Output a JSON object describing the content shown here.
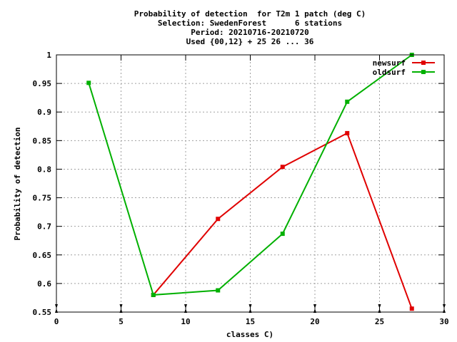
{
  "chart_data": {
    "type": "line",
    "title_lines": [
      "Probability of detection  for T2m 1 patch (deg C)",
      "Selection: SwedenForest      6 stations",
      "Period: 20210716-20210720",
      "Used {00,12} + 25 26 ... 36"
    ],
    "xlabel": "classes C)",
    "ylabel": "Probability of detection",
    "xlim": [
      0,
      30
    ],
    "ylim": [
      0.55,
      1.0
    ],
    "x_ticks": [
      0,
      5,
      10,
      15,
      20,
      25,
      30
    ],
    "x_tick_labels": [
      "0",
      "5",
      "10",
      "15",
      "20",
      "25",
      "30"
    ],
    "y_ticks": [
      0.55,
      0.6,
      0.65,
      0.7,
      0.75,
      0.8,
      0.85,
      0.9,
      0.95,
      1.0
    ],
    "y_tick_labels": [
      "0.55",
      "0.6",
      "0.65",
      "0.7",
      "0.75",
      "0.8",
      "0.85",
      "0.9",
      "0.95",
      "1"
    ],
    "grid": true,
    "legend_position": "top-right",
    "series": [
      {
        "name": "newsurf",
        "color": "#e00000",
        "x": [
          7.5,
          12.5,
          17.5,
          22.5,
          27.5
        ],
        "y": [
          0.58,
          0.713,
          0.804,
          0.863,
          0.556
        ]
      },
      {
        "name": "oldsurf",
        "color": "#00b000",
        "x": [
          2.5,
          7.5,
          12.5,
          17.5,
          22.5,
          27.5
        ],
        "y": [
          0.951,
          0.58,
          0.588,
          0.687,
          0.918,
          1.0
        ]
      }
    ]
  }
}
